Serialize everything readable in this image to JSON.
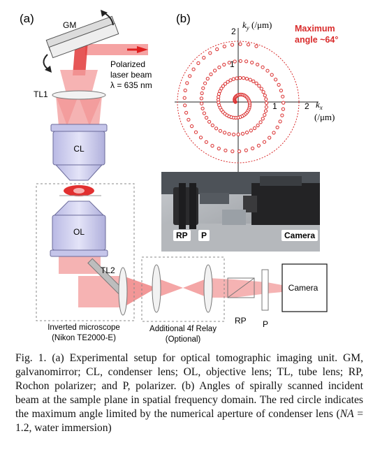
{
  "panel_a": {
    "label": "(a)",
    "gm": "GM",
    "polarized_line1": "Polarized",
    "polarized_line2": "laser beam",
    "wavelength": "λ = 635 nm",
    "tl1": "TL1",
    "cl": "CL",
    "ol": "OL",
    "tl2": "TL2",
    "rp": "RP",
    "p": "P",
    "camera": "Camera",
    "microscope_line1": "Inverted microscope",
    "microscope_line2": "(Nikon TE2000-E)",
    "relay_line1": "Additional 4f Relay",
    "relay_line2": "(Optional)"
  },
  "panel_b": {
    "label": "(b)",
    "ky_label": "k",
    "ky_sub": "y",
    "ky_unit": " (/μm)",
    "kx_label": "k",
    "kx_sub": "x",
    "kx_unit": "(/μm)",
    "tick_2_top": "2",
    "tick_1_top": "1",
    "tick_1_right": "1",
    "tick_2_right": "2",
    "max_angle_line1": "Maximum",
    "max_angle_line2": "angle ~64°"
  },
  "photo": {
    "rp": "RP",
    "p": "P",
    "camera": "Camera"
  },
  "caption": {
    "fig_label": "Fig. 1.",
    "text": "(a) Experimental setup for optical tomographic imaging unit. GM, galvanomirror; CL, condenser lens; OL, objective lens; TL, tube lens; RP, Rochon polarizer; and P, polarizer. (b) Angles of spirally scanned incident beam at the sample plane in spatial frequency domain. The red circle indicates the maximum angle limited by the numerical aperture of condenser lens (",
    "na": "NA",
    "text_end": " = 1.2, water immersion)"
  },
  "colors": {
    "beam": "#f26d6d",
    "beam_dark": "#e02020",
    "lens_fill": "#c9c9ea",
    "lens_stroke": "#6a6a9a",
    "max_circle": "#d92b2b",
    "point_stroke": "#d92b2b"
  }
}
